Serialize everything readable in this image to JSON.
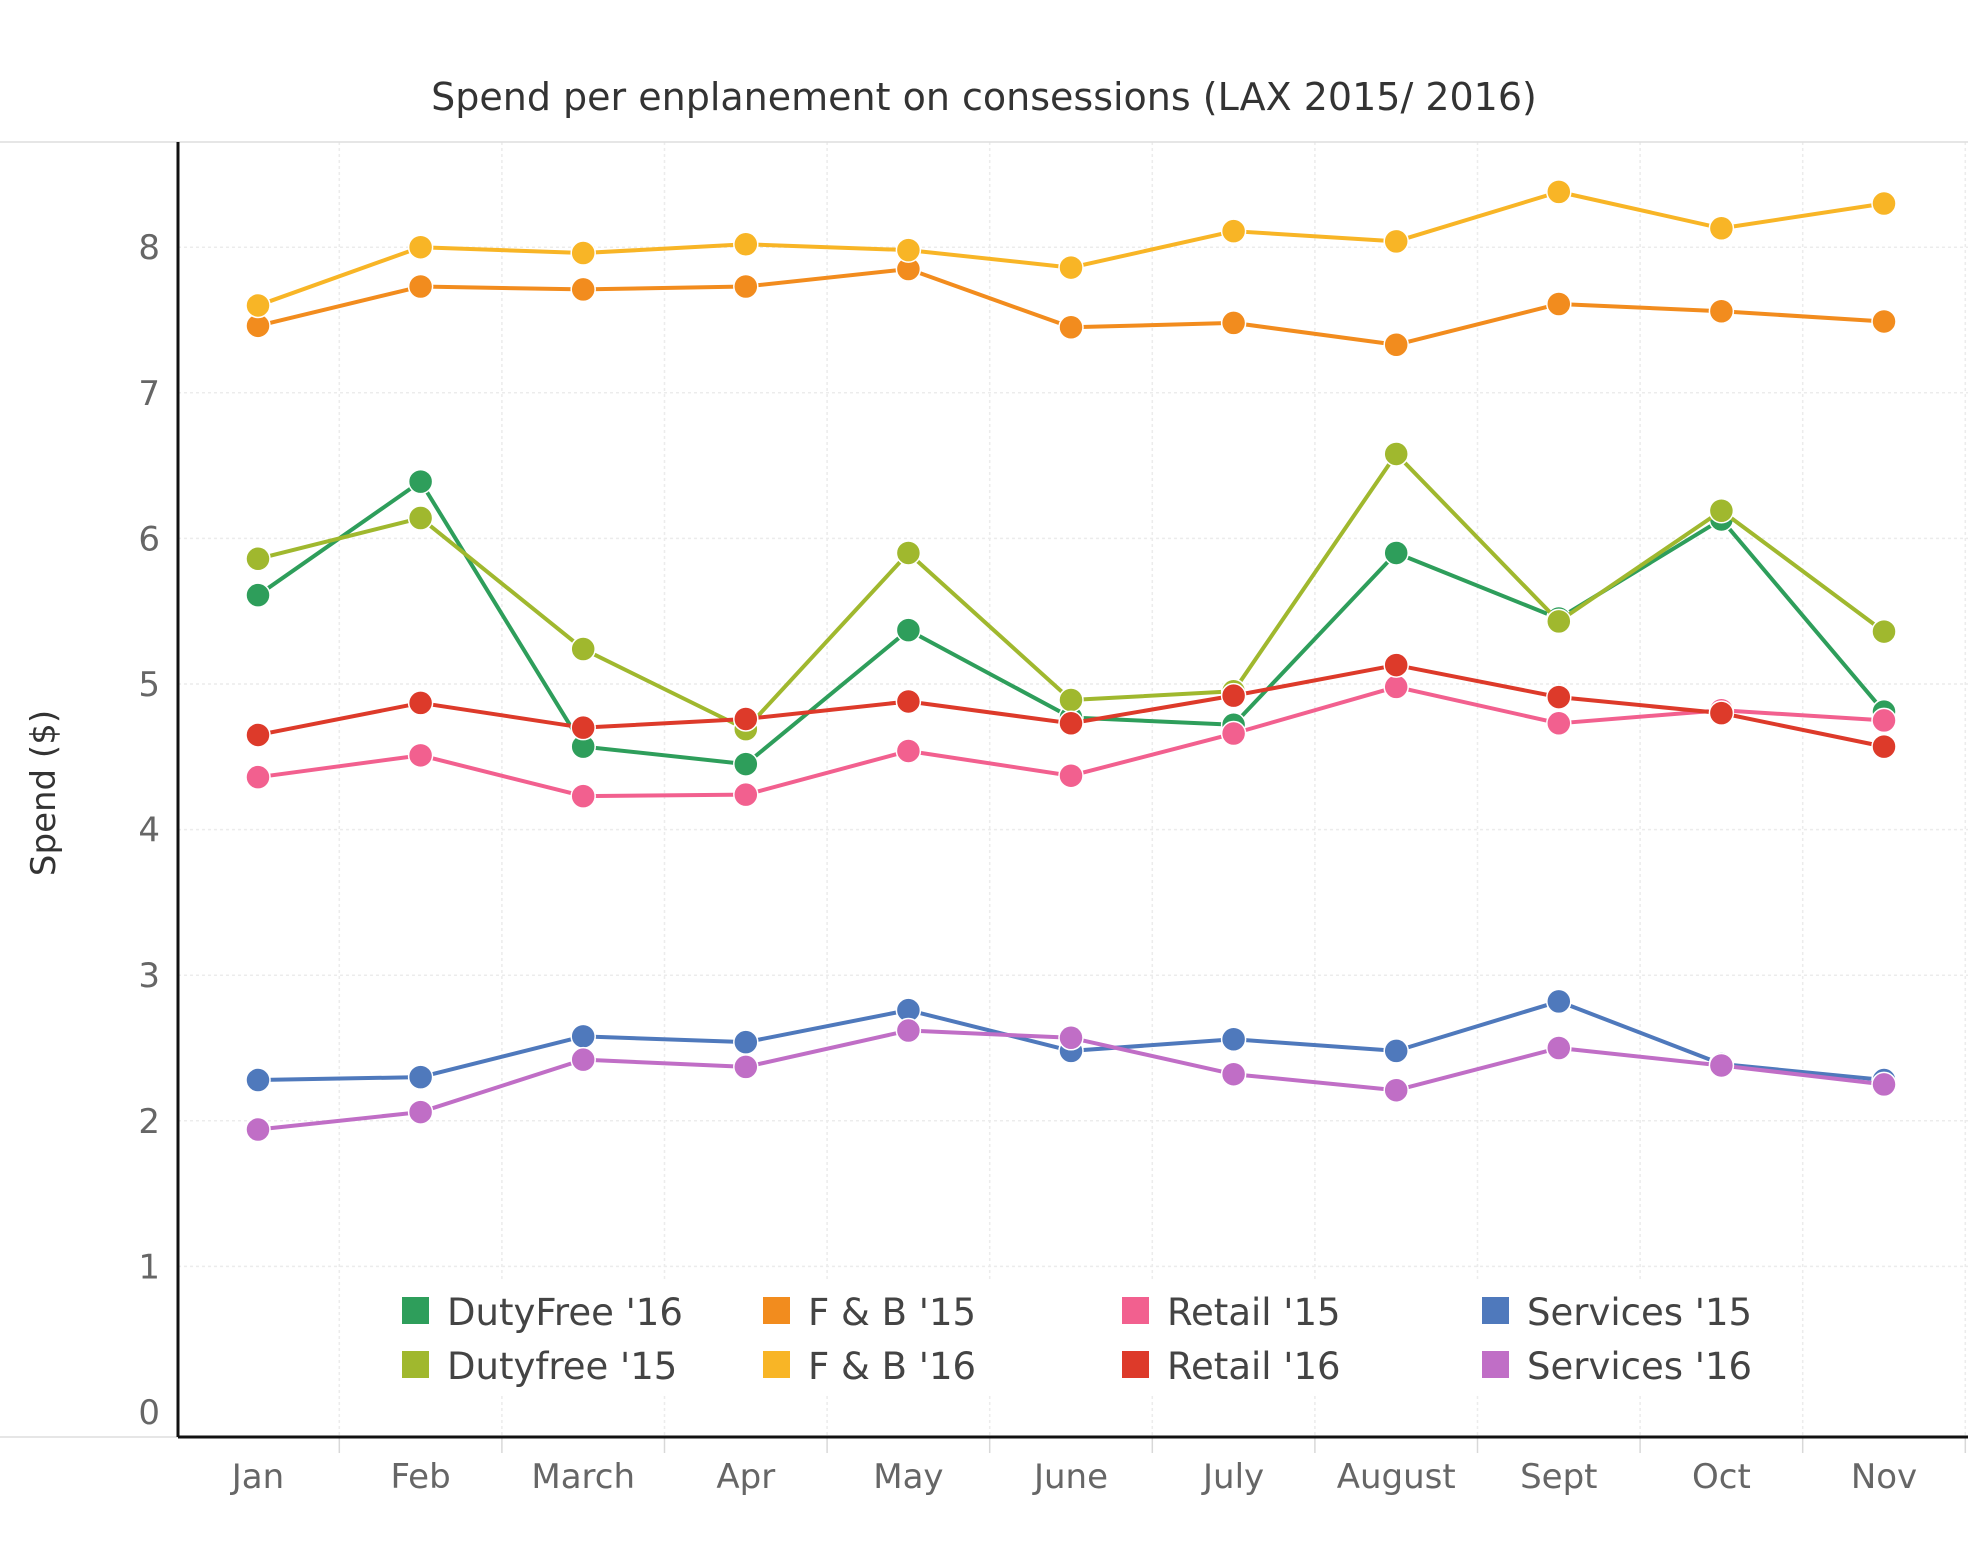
{
  "chart_data": {
    "type": "line",
    "title": "Spend per enplanement on consessions  (LAX 2015/ 2016)",
    "xlabel": "",
    "ylabel": "Spend ($)",
    "categories": [
      "Jan",
      "Feb",
      "March",
      "Apr",
      "May",
      "June",
      "July",
      "August",
      "Sept",
      "Oct",
      "Nov"
    ],
    "ylim": [
      0,
      8.8
    ],
    "yticks": [
      "0",
      "1",
      "2",
      "3",
      "4",
      "5",
      "6",
      "7",
      "8"
    ],
    "grid": true,
    "legend_position": "bottom-inside",
    "series": [
      {
        "name": "DutyFree '16",
        "color": "#2e9e5b",
        "values": [
          5.61,
          6.39,
          4.57,
          4.45,
          5.37,
          4.77,
          4.72,
          5.9,
          5.45,
          6.13,
          4.81
        ]
      },
      {
        "name": "Dutyfree '15",
        "color": "#a0b82e",
        "values": [
          5.86,
          6.14,
          5.24,
          4.69,
          5.9,
          4.89,
          4.95,
          6.58,
          5.43,
          6.19,
          5.36
        ]
      },
      {
        "name": "F & B '15",
        "color": "#f28c1e",
        "values": [
          7.46,
          7.73,
          7.71,
          7.73,
          7.85,
          7.45,
          7.48,
          7.33,
          7.61,
          7.56,
          7.49
        ]
      },
      {
        "name": "F & B '16",
        "color": "#f8b526",
        "values": [
          7.6,
          8.0,
          7.96,
          8.02,
          7.98,
          7.86,
          8.11,
          8.04,
          8.38,
          8.13,
          8.3
        ]
      },
      {
        "name": "Retail '15",
        "color": "#f2608f",
        "values": [
          4.36,
          4.51,
          4.23,
          4.24,
          4.54,
          4.37,
          4.66,
          4.98,
          4.73,
          4.82,
          4.75
        ]
      },
      {
        "name": "Retail '16",
        "color": "#dd3a2a",
        "values": [
          4.65,
          4.87,
          4.7,
          4.76,
          4.88,
          4.73,
          4.92,
          5.13,
          4.91,
          4.8,
          4.57
        ]
      },
      {
        "name": "Services '15",
        "color": "#4f79bc",
        "values": [
          2.28,
          2.3,
          2.58,
          2.54,
          2.76,
          2.48,
          2.56,
          2.48,
          2.82,
          2.39,
          2.28
        ]
      },
      {
        "name": "Services '16",
        "color": "#c06ec6",
        "values": [
          1.94,
          2.06,
          2.42,
          2.37,
          2.62,
          2.57,
          2.32,
          2.21,
          2.5,
          2.38,
          2.25
        ]
      }
    ]
  }
}
